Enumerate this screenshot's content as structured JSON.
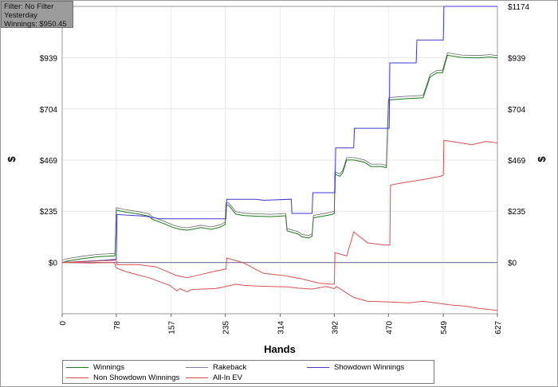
{
  "filter_box": {
    "line1": "Filter: No Filter",
    "line2": "Yesterday",
    "line3": "Winnings: $950.45"
  },
  "chart_data": {
    "type": "line",
    "xlabel": "Hands",
    "ylabel_left": "$",
    "ylabel_right": "$",
    "xlim": [
      0,
      627
    ],
    "ylim": [
      -235,
      1174
    ],
    "x_ticks": [
      "0",
      "78",
      "157",
      "235",
      "314",
      "392",
      "470",
      "549",
      "627"
    ],
    "y_ticks": [
      {
        "value": 0,
        "label": "$0"
      },
      {
        "value": 235,
        "label": "$235"
      },
      {
        "value": 469,
        "label": "$469"
      },
      {
        "value": 704,
        "label": "$704"
      },
      {
        "value": 939,
        "label": "$939"
      },
      {
        "value": 1174,
        "label": "$1174"
      }
    ],
    "grid": true,
    "legend_position": "bottom",
    "series": [
      {
        "name": "Winnings",
        "color": "#1a7a1a",
        "x": [
          0,
          10,
          30,
          50,
          60,
          75,
          76,
          78,
          90,
          110,
          125,
          130,
          145,
          160,
          170,
          180,
          200,
          215,
          228,
          235,
          236,
          240,
          250,
          262,
          280,
          300,
          322,
          324,
          340,
          345,
          355,
          360,
          362,
          380,
          388,
          392,
          393,
          400,
          404,
          410,
          420,
          435,
          445,
          460,
          467,
          470,
          471,
          490,
          520,
          530,
          535,
          540,
          548,
          555,
          575,
          600,
          615,
          627
        ],
        "y": [
          0,
          8,
          18,
          26,
          28,
          30,
          30,
          240,
          232,
          222,
          212,
          198,
          180,
          160,
          152,
          148,
          160,
          152,
          162,
          175,
          262,
          262,
          222,
          215,
          212,
          210,
          214,
          145,
          130,
          118,
          112,
          120,
          205,
          215,
          220,
          225,
          405,
          395,
          410,
          470,
          470,
          460,
          440,
          440,
          435,
          735,
          745,
          750,
          755,
          850,
          860,
          870,
          870,
          950,
          940,
          938,
          942,
          938
        ]
      },
      {
        "name": "Rakeback",
        "color": "#7f7fa6",
        "x": [
          0,
          627
        ],
        "y": [
          0,
          0
        ]
      },
      {
        "name": "Showdown Winnings",
        "color": "#3a3ad0",
        "x": [
          0,
          60,
          78,
          79,
          120,
          140,
          236,
          237,
          280,
          290,
          330,
          331,
          360,
          361,
          393,
          394,
          420,
          421,
          471,
          472,
          510,
          511,
          549,
          550,
          627
        ],
        "y": [
          0,
          10,
          15,
          220,
          212,
          200,
          200,
          290,
          290,
          285,
          290,
          225,
          225,
          320,
          320,
          525,
          525,
          615,
          615,
          915,
          915,
          1020,
          1020,
          1174,
          1174
        ]
      },
      {
        "name": "Non Showdown Winnings",
        "color": "#d85050",
        "x": [
          0,
          40,
          75,
          78,
          90,
          110,
          125,
          140,
          155,
          165,
          170,
          180,
          185,
          200,
          220,
          236,
          250,
          262,
          280,
          300,
          325,
          340,
          360,
          380,
          392,
          395,
          420,
          440,
          460,
          480,
          500,
          520,
          549,
          560,
          580,
          600,
          627
        ],
        "y": [
          0,
          -2,
          0,
          -25,
          -40,
          -58,
          -70,
          -88,
          -105,
          -130,
          -120,
          -135,
          -125,
          -122,
          -120,
          -110,
          -100,
          -105,
          -108,
          -110,
          -112,
          -118,
          -122,
          -110,
          -120,
          -110,
          -160,
          -178,
          -180,
          -182,
          -185,
          -178,
          -190,
          -195,
          -200,
          -210,
          -220
        ]
      },
      {
        "name": "All-In EV",
        "color": "#d85050",
        "x": [
          0,
          60,
          78,
          79,
          110,
          135,
          150,
          165,
          180,
          200,
          220,
          236,
          237,
          260,
          290,
          320,
          345,
          370,
          390,
          392,
          393,
          410,
          420,
          440,
          465,
          472,
          473,
          490,
          520,
          545,
          549,
          550,
          570,
          590,
          610,
          627
        ],
        "y": [
          0,
          8,
          10,
          -10,
          -10,
          -20,
          -40,
          -60,
          -70,
          -55,
          -40,
          -30,
          20,
          0,
          -50,
          -60,
          -75,
          -95,
          -100,
          -98,
          45,
          30,
          140,
          90,
          80,
          80,
          355,
          365,
          380,
          395,
          400,
          560,
          550,
          540,
          555,
          548
        ]
      }
    ]
  },
  "legend": [
    {
      "label": "Winnings",
      "color": "#1a7a1a"
    },
    {
      "label": "Rakeback",
      "color": "#7f7fa6"
    },
    {
      "label": "Showdown Winnings",
      "color": "#3a3ad0"
    },
    {
      "label": "Non Showdown Winnings",
      "color": "#d85050"
    },
    {
      "label": "All-In EV",
      "color": "#d85050"
    }
  ]
}
